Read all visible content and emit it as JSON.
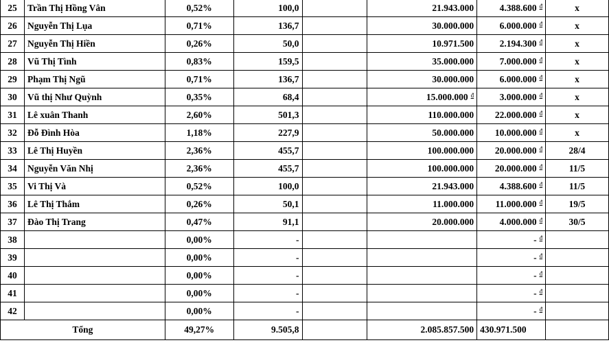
{
  "rows": [
    {
      "no": "25",
      "name": "Trần Thị Hồng Vân",
      "pct": "0,52%",
      "val": "100,0",
      "amount": "21.943.000",
      "amount_sfx": "",
      "paid": "4.388.600",
      "paid_sfx": "đ",
      "note": "x"
    },
    {
      "no": "26",
      "name": "Nguyễn Thị Lụa",
      "pct": "0,71%",
      "val": "136,7",
      "amount": "30.000.000",
      "amount_sfx": "",
      "paid": "6.000.000",
      "paid_sfx": "đ",
      "note": "x"
    },
    {
      "no": "27",
      "name": "Nguyễn Thị Hiền",
      "pct": "0,26%",
      "val": "50,0",
      "amount": "10.971.500",
      "amount_sfx": "",
      "paid": "2.194.300",
      "paid_sfx": "đ",
      "note": "x"
    },
    {
      "no": "28",
      "name": "Vũ Thị Tình",
      "pct": "0,83%",
      "val": "159,5",
      "amount": "35.000.000",
      "amount_sfx": "",
      "paid": "7.000.000",
      "paid_sfx": "đ",
      "note": "x"
    },
    {
      "no": "29",
      "name": "Phạm Thị Ngũ",
      "pct": "0,71%",
      "val": "136,7",
      "amount": "30.000.000",
      "amount_sfx": "",
      "paid": "6.000.000",
      "paid_sfx": "đ",
      "note": "x"
    },
    {
      "no": "30",
      "name": "Vũ thị Như Quỳnh",
      "pct": "0,35%",
      "val": "68,4",
      "amount": "15.000.000",
      "amount_sfx": "đ",
      "paid": "3.000.000",
      "paid_sfx": "đ",
      "note": "x"
    },
    {
      "no": "31",
      "name": "Lê xuân Thanh",
      "pct": "2,60%",
      "val": "501,3",
      "amount": "110.000.000",
      "amount_sfx": "",
      "paid": "22.000.000",
      "paid_sfx": "đ",
      "note": "x"
    },
    {
      "no": "32",
      "name": "Đỗ Đình Hòa",
      "pct": "1,18%",
      "val": "227,9",
      "amount": "50.000.000",
      "amount_sfx": "",
      "paid": "10.000.000",
      "paid_sfx": "đ",
      "note": "x"
    },
    {
      "no": "33",
      "name": "Lê Thị Huyền",
      "pct": "2,36%",
      "val": "455,7",
      "amount": "100.000.000",
      "amount_sfx": "",
      "paid": "20.000.000",
      "paid_sfx": "đ",
      "note": "28/4"
    },
    {
      "no": "34",
      "name": "Nguyễn Văn Nhị",
      "pct": "2,36%",
      "val": "455,7",
      "amount": "100.000.000",
      "amount_sfx": "",
      "paid": "20.000.000",
      "paid_sfx": "đ",
      "note": "11/5"
    },
    {
      "no": "35",
      "name": "Vi Thị Và",
      "pct": "0,52%",
      "val": "100,0",
      "amount": "21.943.000",
      "amount_sfx": "",
      "paid": "4.388.600",
      "paid_sfx": "đ",
      "note": "11/5"
    },
    {
      "no": "36",
      "name": "Lê Thị Thắm",
      "pct": "0,26%",
      "val": "50,1",
      "amount": "11.000.000",
      "amount_sfx": "",
      "paid": "11.000.000",
      "paid_sfx": "đ",
      "note": "19/5"
    },
    {
      "no": "37",
      "name": "Đào Thị Trang",
      "pct": "0,47%",
      "val": "91,1",
      "amount": "20.000.000",
      "amount_sfx": "",
      "paid": "4.000.000",
      "paid_sfx": "đ",
      "note": "30/5"
    },
    {
      "no": "38",
      "name": "",
      "pct": "0,00%",
      "val": "-",
      "amount": "",
      "amount_sfx": "",
      "paid": "-",
      "paid_sfx": "đ",
      "note": ""
    },
    {
      "no": "39",
      "name": "",
      "pct": "0,00%",
      "val": "-",
      "amount": "",
      "amount_sfx": "",
      "paid": "-",
      "paid_sfx": "đ",
      "note": ""
    },
    {
      "no": "40",
      "name": "",
      "pct": "0,00%",
      "val": "-",
      "amount": "",
      "amount_sfx": "",
      "paid": "-",
      "paid_sfx": "đ",
      "note": ""
    },
    {
      "no": "41",
      "name": "",
      "pct": "0,00%",
      "val": "-",
      "amount": "",
      "amount_sfx": "",
      "paid": "-",
      "paid_sfx": "đ",
      "note": ""
    },
    {
      "no": "42",
      "name": "",
      "pct": "0,00%",
      "val": "-",
      "amount": "",
      "amount_sfx": "",
      "paid": "-",
      "paid_sfx": "đ",
      "note": ""
    }
  ],
  "total": {
    "label": "Tổng",
    "pct": "49,27%",
    "val": "9.505,8",
    "amount": "2.085.857.500",
    "paid": "430.971.500"
  }
}
